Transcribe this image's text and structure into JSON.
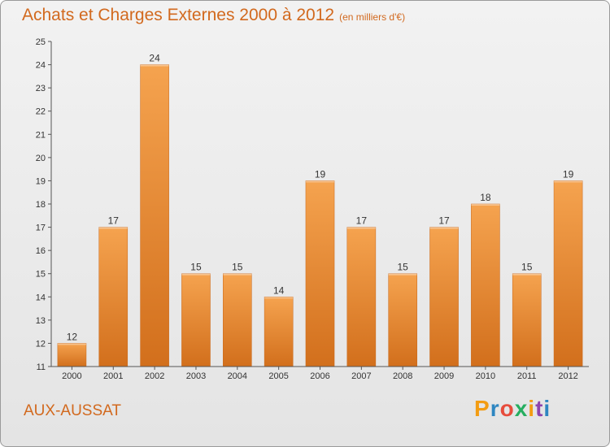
{
  "header": {
    "title": "Achats et Charges Externes 2000 à 2012",
    "subtitle": "(en milliers d'€)"
  },
  "footer": {
    "commune": "AUX-AUSSAT",
    "logo_letters": [
      "P",
      "r",
      "o",
      "x",
      "i",
      "t",
      "i"
    ],
    "logo_colors": [
      "#f39c12",
      "#2e86c1",
      "#e74c3c",
      "#27ae60",
      "#f39c12",
      "#8e44ad",
      "#2e86c1"
    ]
  },
  "chart_data": {
    "type": "bar",
    "title": "Achats et Charges Externes 2000 à 2012",
    "subtitle": "(en milliers d'€)",
    "categories": [
      "2000",
      "2001",
      "2002",
      "2003",
      "2004",
      "2005",
      "2006",
      "2007",
      "2008",
      "2009",
      "2010",
      "2011",
      "2012"
    ],
    "values": [
      12,
      17,
      24,
      15,
      15,
      14,
      19,
      17,
      15,
      17,
      18,
      15,
      19
    ],
    "ylim": [
      11,
      25
    ],
    "yticks": [
      11,
      12,
      13,
      14,
      15,
      16,
      17,
      18,
      19,
      20,
      21,
      22,
      23,
      24,
      25
    ],
    "grid": false,
    "data_labels": true,
    "colors": {
      "bar_top": "#f5a34f",
      "bar_bottom": "#d26f1c",
      "bar_edge": "#c9681a"
    }
  }
}
